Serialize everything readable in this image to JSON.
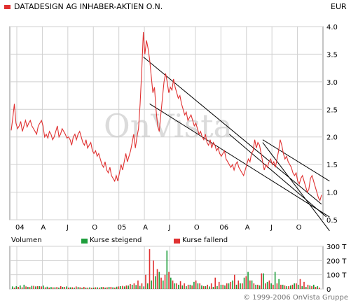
{
  "header": {
    "title": "DATADESIGN AG INHABER-AKTIEN O.N.",
    "currency": "EUR",
    "title_swatch_color": "#e03131"
  },
  "watermark": "OnVista",
  "volume_legend": {
    "label": "Volumen",
    "rising": {
      "label": "Kurse steigend",
      "color": "#1e9e3c"
    },
    "falling": {
      "label": "Kurse fallend",
      "color": "#e03131"
    }
  },
  "footer": "© 1999-2006 OnVista Gruppe",
  "chart_data": [
    {
      "type": "line",
      "title": "DATADESIGN AG INHABER-AKTIEN O.N.",
      "ylabel": "EUR",
      "ylim": [
        0.5,
        4.0
      ],
      "y_ticks": [
        "4.0",
        "3.5",
        "3.0",
        "2.5",
        "2.0",
        "1.5",
        "1.0",
        "0.5"
      ],
      "x_ticks": [
        "04",
        "A",
        "J",
        "O",
        "05",
        "A",
        "J",
        "O",
        "06",
        "A",
        "J",
        "O"
      ],
      "grid": true,
      "series_color": "#e03131",
      "series": [
        {
          "values": [
            2.12,
            2.35,
            2.6,
            2.25,
            2.15,
            2.2,
            2.28,
            2.1,
            2.2,
            2.3,
            2.18,
            2.25,
            2.3,
            2.2,
            2.15,
            2.1,
            2.05,
            2.2,
            2.25,
            2.3,
            2.2,
            2.0,
            2.05,
            1.98,
            2.1,
            2.05,
            1.95,
            2.0,
            2.1,
            2.2,
            2.0,
            2.05,
            2.15,
            2.1,
            2.05,
            1.98,
            2.0,
            1.95,
            1.85,
            2.0,
            2.05,
            1.95,
            2.05,
            2.1,
            2.0,
            1.9,
            1.85,
            1.95,
            1.8,
            1.85,
            1.9,
            1.75,
            1.7,
            1.75,
            1.65,
            1.7,
            1.6,
            1.5,
            1.45,
            1.55,
            1.4,
            1.35,
            1.45,
            1.3,
            1.25,
            1.2,
            1.3,
            1.2,
            1.35,
            1.5,
            1.4,
            1.55,
            1.7,
            1.55,
            1.65,
            1.75,
            1.9,
            2.05,
            1.8,
            2.0,
            2.15,
            2.6,
            3.2,
            3.9,
            3.5,
            3.75,
            3.6,
            3.4,
            3.1,
            2.8,
            2.9,
            2.5,
            2.2,
            2.1,
            2.4,
            2.7,
            3.0,
            3.15,
            3.0,
            2.8,
            2.9,
            2.85,
            3.05,
            2.9,
            2.8,
            2.7,
            2.75,
            2.6,
            2.5,
            2.4,
            2.45,
            2.3,
            2.35,
            2.4,
            2.3,
            2.2,
            2.25,
            2.15,
            2.05,
            2.1,
            2.0,
            1.95,
            2.05,
            1.9,
            1.85,
            1.95,
            1.8,
            1.9,
            1.85,
            1.75,
            1.8,
            1.7,
            1.65,
            1.7,
            1.75,
            1.6,
            1.55,
            1.5,
            1.45,
            1.5,
            1.4,
            1.5,
            1.55,
            1.45,
            1.4,
            1.35,
            1.3,
            1.4,
            1.5,
            1.6,
            1.55,
            1.7,
            1.75,
            1.95,
            1.8,
            1.9,
            1.85,
            1.7,
            1.55,
            1.4,
            1.5,
            1.45,
            1.55,
            1.6,
            1.5,
            1.55,
            1.45,
            1.6,
            1.75,
            1.95,
            1.85,
            1.7,
            1.6,
            1.65,
            1.55,
            1.5,
            1.45,
            1.35,
            1.3,
            1.35,
            1.2,
            1.15,
            1.25,
            1.3,
            1.2,
            1.1,
            1.0,
            1.05,
            1.25,
            1.3,
            1.2,
            1.1,
            1.0,
            0.9,
            0.85,
            0.95
          ]
        }
      ]
    },
    {
      "type": "bar",
      "title": "Volumen",
      "ylim": [
        0,
        300
      ],
      "y_ticks": [
        "300 T",
        "200 T",
        "100 T",
        "0"
      ],
      "series": [
        {
          "name": "Kurse steigend",
          "values": [
            18,
            20,
            25,
            30,
            15,
            22,
            18,
            20,
            24,
            16,
            14,
            12,
            10,
            15,
            18,
            12,
            10,
            14,
            8,
            10,
            12,
            10,
            12,
            14,
            10,
            15,
            12,
            16,
            20,
            18,
            24,
            30,
            28,
            22,
            18,
            40,
            60,
            90,
            120,
            60,
            270,
            80,
            40,
            30,
            25,
            20,
            30,
            50,
            40,
            25,
            20,
            18,
            15,
            20,
            30,
            25,
            40,
            60,
            30,
            40,
            80,
            120,
            60,
            30,
            25,
            110,
            50,
            40,
            120,
            70,
            30,
            20,
            25,
            40,
            30,
            20,
            15,
            25,
            30,
            20
          ]
        },
        {
          "name": "Kurse fallend",
          "values": [
            10,
            15,
            12,
            18,
            14,
            22,
            20,
            18,
            12,
            10,
            12,
            14,
            20,
            15,
            10,
            12,
            18,
            12,
            15,
            10,
            8,
            12,
            10,
            14,
            12,
            15,
            10,
            18,
            22,
            25,
            35,
            40,
            60,
            40,
            100,
            280,
            200,
            140,
            80,
            100,
            120,
            60,
            40,
            55,
            40,
            30,
            25,
            60,
            40,
            20,
            30,
            40,
            80,
            50,
            30,
            40,
            50,
            100,
            60,
            40,
            90,
            60,
            40,
            30,
            110,
            40,
            60,
            30,
            40,
            30,
            25,
            20,
            30,
            40,
            70,
            50,
            30,
            20,
            15,
            10
          ]
        }
      ]
    }
  ]
}
